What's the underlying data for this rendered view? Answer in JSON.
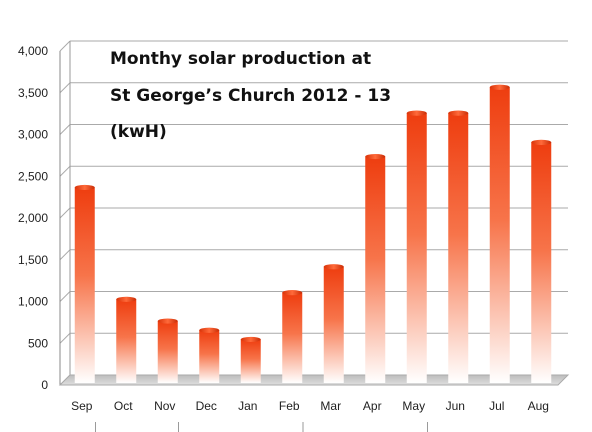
{
  "chart_data": {
    "type": "bar",
    "title_lines": [
      "Monthy solar production at",
      "St George’s Church 2012 - 13",
      "(kwH)"
    ],
    "xlabel": "",
    "ylabel": "",
    "categories": [
      "Sep",
      "Oct",
      "Nov",
      "Dec",
      "Jan",
      "Feb",
      "Mar",
      "Apr",
      "May",
      "Jun",
      "Jul",
      "Aug"
    ],
    "values": [
      2330,
      990,
      730,
      620,
      510,
      1070,
      1380,
      2700,
      3220,
      3220,
      3530,
      2870
    ],
    "ylim": [
      0,
      4000
    ],
    "yticks": [
      0,
      500,
      1000,
      1500,
      2000,
      2500,
      3000,
      3500,
      4000
    ],
    "ytick_labels": [
      "0",
      "500",
      "1,000",
      "1,500",
      "2,000",
      "2,500",
      "3,000",
      "3,500",
      "4,000"
    ],
    "grid": true,
    "legend": "none",
    "colors": {
      "bar_top": "#ee3d0f",
      "bar_bottom": "#ffffff",
      "grid": "#aaaaaa",
      "floor": "#c8c8c8"
    }
  }
}
